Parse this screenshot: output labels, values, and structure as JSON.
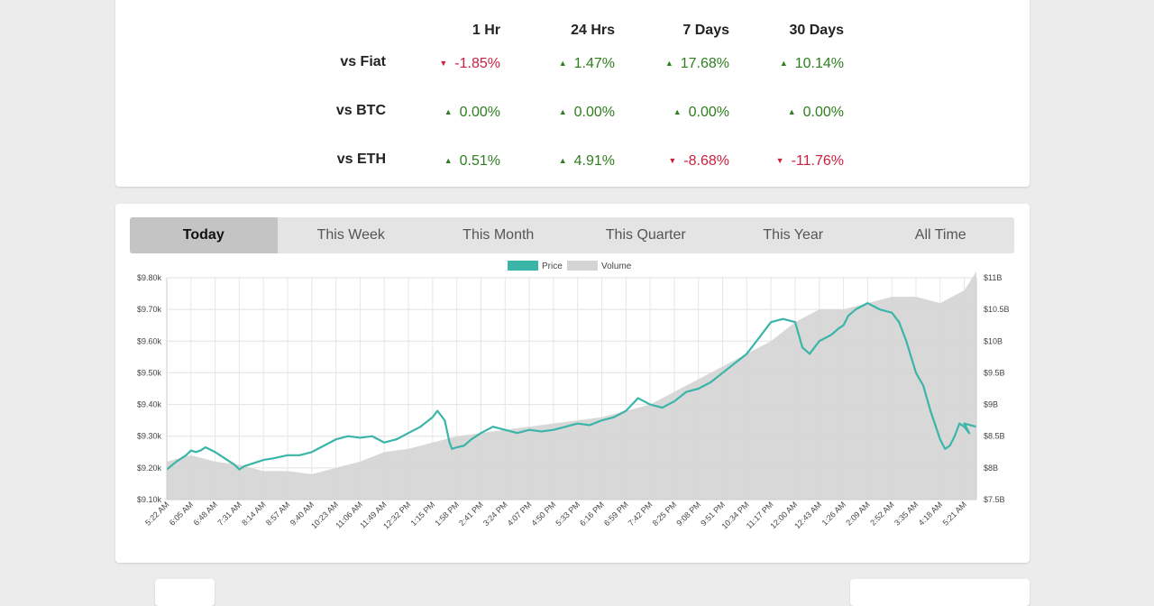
{
  "stats": {
    "headers": [
      "1 Hr",
      "24 Hrs",
      "7 Days",
      "30 Days"
    ],
    "rows": [
      {
        "label": "vs Fiat",
        "values": [
          "-1.85%",
          "1.47%",
          "17.68%",
          "10.14%"
        ],
        "dirs": [
          "down",
          "up",
          "up",
          "up"
        ]
      },
      {
        "label": "vs BTC",
        "values": [
          "0.00%",
          "0.00%",
          "0.00%",
          "0.00%"
        ],
        "dirs": [
          "up",
          "up",
          "up",
          "up"
        ]
      },
      {
        "label": "vs ETH",
        "values": [
          "0.51%",
          "4.91%",
          "-8.68%",
          "-11.76%"
        ],
        "dirs": [
          "up",
          "up",
          "down",
          "down"
        ]
      }
    ],
    "up_arrow": "▲",
    "down_arrow": "▼",
    "colors": {
      "up": "#2e7d1e",
      "down": "#cc1f3c"
    }
  },
  "tabs": [
    "Today",
    "This Week",
    "This Month",
    "This Quarter",
    "This Year",
    "All Time"
  ],
  "active_tab": "Today",
  "chart_data": {
    "type": "line",
    "legend": [
      "Price",
      "Volume"
    ],
    "legend_position": "top-center",
    "grid": true,
    "colors": {
      "price": "#3ab5a8",
      "volume": "#d4d4d4"
    },
    "x_tick_labels": [
      "5:22 AM",
      "6:05 AM",
      "6:48 AM",
      "7:31 AM",
      "8:14 AM",
      "8:57 AM",
      "9:40 AM",
      "10:23 AM",
      "11:06 AM",
      "11:49 AM",
      "12:32 PM",
      "1:15 PM",
      "1:58 PM",
      "2:41 PM",
      "3:24 PM",
      "4:07 PM",
      "4:50 PM",
      "5:33 PM",
      "6:16 PM",
      "6:59 PM",
      "7:42 PM",
      "8:25 PM",
      "9:08 PM",
      "9:51 PM",
      "10:34 PM",
      "11:17 PM",
      "12:00 AM",
      "12:43 AM",
      "1:26 AM",
      "2:09 AM",
      "2:52 AM",
      "3:35 AM",
      "4:18 AM",
      "5:21 AM"
    ],
    "y_left": {
      "ticks": [
        "$9.10k",
        "$9.20k",
        "$9.30k",
        "$9.40k",
        "$9.50k",
        "$9.60k",
        "$9.70k",
        "$9.80k"
      ],
      "range": [
        9100,
        9800
      ]
    },
    "y_right": {
      "ticks": [
        "$7.5B",
        "$8B",
        "$8.5B",
        "$9B",
        "$9.5B",
        "$10B",
        "$10.5B",
        "$11B"
      ],
      "range": [
        7.5,
        11
      ]
    },
    "series": [
      {
        "name": "Price",
        "x": [
          0,
          0.4,
          0.8,
          1,
          1.2,
          1.4,
          1.6,
          2,
          2.4,
          2.8,
          3,
          3.2,
          3.6,
          4,
          4.4,
          5,
          5.5,
          6,
          6.5,
          7,
          7.5,
          8,
          8.5,
          9,
          9.5,
          10,
          10.5,
          11,
          11.2,
          11.5,
          11.7,
          11.8,
          12,
          12.3,
          12.6,
          13,
          13.5,
          14,
          14.5,
          15,
          15.5,
          16,
          16.5,
          17,
          17.5,
          18,
          18.5,
          19,
          19.5,
          20,
          20.5,
          21,
          21.5,
          22,
          22.5,
          23,
          23.5,
          24,
          24.5,
          25,
          25.5,
          26,
          26.3,
          26.6,
          27,
          27.5,
          27.8,
          28,
          28.2,
          28.5,
          29,
          29.5,
          30,
          30.3,
          30.6,
          31,
          31.3,
          31.6,
          32,
          32.2,
          32.4,
          32.6,
          32.8,
          33,
          33.2,
          33,
          33.5
        ],
        "values": [
          9195,
          9220,
          9240,
          9255,
          9250,
          9255,
          9265,
          9250,
          9230,
          9210,
          9195,
          9205,
          9215,
          9225,
          9230,
          9240,
          9240,
          9250,
          9270,
          9290,
          9300,
          9295,
          9300,
          9280,
          9290,
          9310,
          9330,
          9360,
          9380,
          9350,
          9280,
          9260,
          9265,
          9270,
          9290,
          9310,
          9330,
          9320,
          9310,
          9320,
          9315,
          9320,
          9330,
          9340,
          9335,
          9350,
          9360,
          9380,
          9420,
          9400,
          9390,
          9410,
          9440,
          9450,
          9470,
          9500,
          9530,
          9560,
          9610,
          9660,
          9670,
          9660,
          9580,
          9560,
          9600,
          9620,
          9640,
          9650,
          9680,
          9700,
          9720,
          9700,
          9690,
          9660,
          9600,
          9500,
          9460,
          9380,
          9290,
          9260,
          9270,
          9300,
          9340,
          9330,
          9310,
          9340,
          9330
        ]
      },
      {
        "name": "Volume",
        "x": [
          0,
          1,
          2,
          3,
          4,
          5,
          6,
          7,
          8,
          9,
          10,
          11,
          12,
          13,
          14,
          15,
          16,
          17,
          18,
          19,
          20,
          21,
          22,
          23,
          24,
          25,
          26,
          27,
          28,
          29,
          30,
          31,
          32,
          33,
          33.5
        ],
        "values": [
          8.1,
          8.2,
          8.1,
          8.05,
          7.95,
          7.95,
          7.9,
          8,
          8.1,
          8.25,
          8.3,
          8.4,
          8.5,
          8.55,
          8.6,
          8.65,
          8.7,
          8.75,
          8.8,
          8.9,
          9.0,
          9.2,
          9.4,
          9.6,
          9.8,
          10.0,
          10.3,
          10.5,
          10.5,
          10.6,
          10.7,
          10.7,
          10.6,
          10.8,
          11.1
        ]
      }
    ]
  }
}
